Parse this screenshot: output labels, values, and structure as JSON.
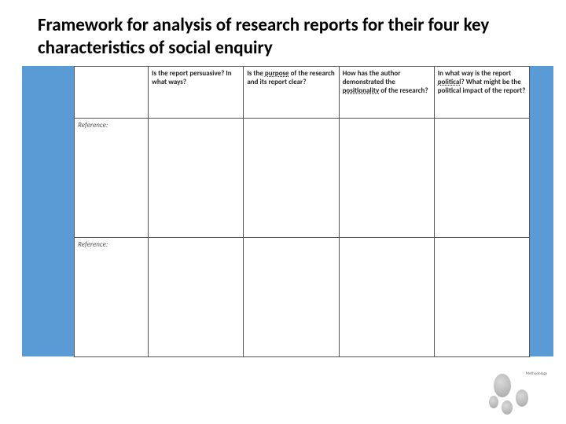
{
  "title": "Framework for analysis of research reports for their four key characteristics of social enquiry",
  "table": {
    "columns": [
      {
        "text": "Is the report persuasive? In what ways?"
      },
      {
        "text_a": "Is the ",
        "italic": "purpose",
        "text_b": " of the research and its report clear?"
      },
      {
        "text_a": "How has the author demonstrated the ",
        "italic": "positionality",
        "text_b": " of the research?"
      },
      {
        "text_a": "In what way is the report ",
        "italic": "political",
        "text_b": "? What might be the political impact of the report?"
      }
    ],
    "ref_label": "Reference:",
    "rows": [
      {
        "cells": [
          "",
          "",
          "",
          ""
        ]
      },
      {
        "cells": [
          "",
          "",
          "",
          ""
        ]
      }
    ]
  },
  "colors": {
    "blue": "#5b9bd5",
    "border": "#555555",
    "text": "#222222",
    "ref": "#555555"
  },
  "footer": {
    "label": "Methodology"
  }
}
